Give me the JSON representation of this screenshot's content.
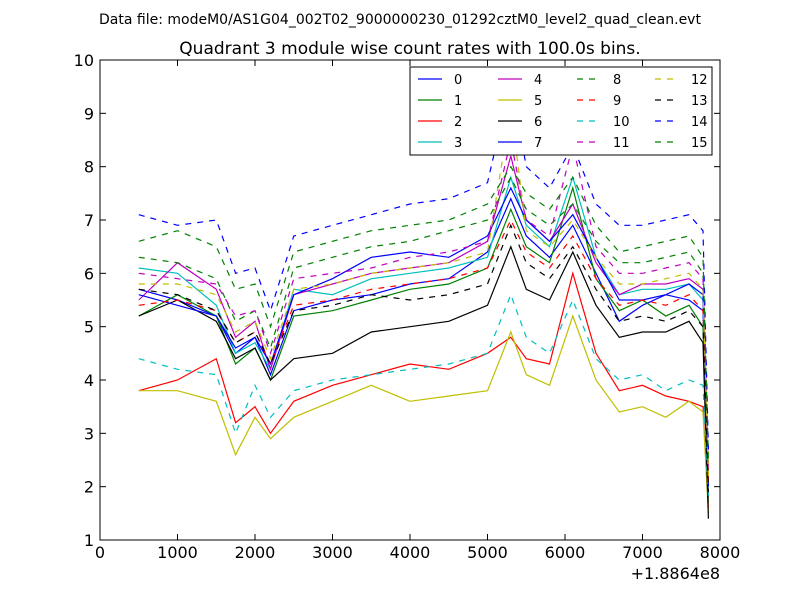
{
  "suptitle": "Data file: modeM0/AS1G04_002T02_9000000230_01292cztM0_level2_quad_clean.evt",
  "chart_data": {
    "type": "line",
    "title": "Quadrant 3 module wise count rates with 100.0s bins.",
    "xlabel": "",
    "ylabel": "",
    "xlim": [
      0,
      8000
    ],
    "ylim": [
      1,
      10
    ],
    "x_offset_label": "+1.8864e8",
    "xticks": [
      0,
      1000,
      2000,
      3000,
      4000,
      5000,
      6000,
      7000,
      8000
    ],
    "yticks": [
      1,
      2,
      3,
      4,
      5,
      6,
      7,
      8,
      9,
      10
    ],
    "legend_position": "top-right",
    "x": [
      500,
      1000,
      1500,
      1750,
      2000,
      2200,
      2500,
      3000,
      3500,
      4000,
      4500,
      5000,
      5300,
      5500,
      5800,
      6100,
      6400,
      6700,
      7000,
      7300,
      7600,
      7780,
      7850
    ],
    "series": [
      {
        "name": "0",
        "color": "#0000ff",
        "dash": "solid",
        "values": [
          5.7,
          5.5,
          5.2,
          4.5,
          4.8,
          4.1,
          5.3,
          5.5,
          5.6,
          5.8,
          5.9,
          6.4,
          7.4,
          6.7,
          6.3,
          6.9,
          6.0,
          5.1,
          5.4,
          5.6,
          5.5,
          5.3,
          1.8
        ]
      },
      {
        "name": "1",
        "color": "#008000",
        "dash": "solid",
        "values": [
          5.2,
          5.6,
          5.2,
          4.3,
          4.6,
          4.0,
          5.2,
          5.3,
          5.5,
          5.7,
          5.8,
          6.1,
          7.2,
          6.5,
          6.2,
          7.6,
          5.9,
          5.3,
          5.5,
          5.2,
          5.4,
          5.0,
          1.7
        ]
      },
      {
        "name": "2",
        "color": "#ff0000",
        "dash": "solid",
        "values": [
          3.8,
          4.0,
          4.4,
          3.2,
          3.5,
          3.0,
          3.6,
          3.9,
          4.1,
          4.3,
          4.2,
          4.5,
          4.8,
          4.4,
          4.3,
          6.0,
          4.5,
          3.8,
          3.9,
          3.7,
          3.6,
          3.5,
          1.6
        ]
      },
      {
        "name": "3",
        "color": "#00bfbf",
        "dash": "solid",
        "values": [
          6.1,
          6.0,
          5.4,
          4.5,
          4.7,
          4.2,
          5.7,
          5.6,
          5.9,
          6.0,
          6.1,
          6.3,
          7.8,
          6.9,
          6.5,
          7.8,
          6.3,
          5.6,
          5.7,
          5.7,
          5.8,
          5.5,
          2.0
        ]
      },
      {
        "name": "4",
        "color": "#bf00bf",
        "dash": "solid",
        "values": [
          5.5,
          6.2,
          5.7,
          4.8,
          5.1,
          4.2,
          5.6,
          5.8,
          6.0,
          6.1,
          6.2,
          6.6,
          8.2,
          7.0,
          6.6,
          7.3,
          6.2,
          5.6,
          5.8,
          5.8,
          5.9,
          5.7,
          2.2
        ]
      },
      {
        "name": "5",
        "color": "#bfbf00",
        "dash": "solid",
        "values": [
          3.8,
          3.8,
          3.6,
          2.6,
          3.3,
          2.9,
          3.3,
          3.6,
          3.9,
          3.6,
          3.7,
          3.8,
          4.9,
          4.1,
          3.9,
          5.2,
          4.0,
          3.4,
          3.5,
          3.3,
          3.6,
          3.4,
          1.5
        ]
      },
      {
        "name": "6",
        "color": "#000000",
        "dash": "solid",
        "values": [
          5.2,
          5.5,
          5.1,
          4.4,
          4.6,
          4.0,
          4.4,
          4.5,
          4.9,
          5.0,
          5.1,
          5.4,
          6.5,
          5.7,
          5.5,
          6.4,
          5.4,
          4.8,
          4.9,
          4.9,
          5.1,
          4.7,
          1.4
        ]
      },
      {
        "name": "7",
        "color": "#0000ff",
        "dash": "solid",
        "values": [
          5.6,
          5.4,
          5.2,
          4.6,
          4.8,
          4.3,
          5.6,
          5.9,
          6.3,
          6.4,
          6.3,
          6.7,
          7.6,
          7.0,
          6.6,
          7.1,
          6.3,
          5.5,
          5.5,
          5.6,
          5.8,
          5.6,
          2.0
        ]
      },
      {
        "name": "8",
        "color": "#008000",
        "dash": "dashed",
        "values": [
          6.3,
          6.2,
          5.9,
          5.1,
          5.3,
          4.6,
          6.1,
          6.3,
          6.5,
          6.6,
          6.8,
          7.0,
          7.8,
          7.2,
          6.9,
          7.3,
          6.6,
          6.2,
          6.2,
          6.3,
          6.4,
          6.0,
          2.4
        ]
      },
      {
        "name": "9",
        "color": "#ff0000",
        "dash": "dashed",
        "values": [
          5.4,
          5.5,
          5.3,
          4.7,
          4.9,
          4.3,
          5.4,
          5.5,
          5.7,
          5.8,
          5.9,
          6.1,
          7.0,
          6.4,
          6.1,
          6.7,
          5.9,
          5.4,
          5.5,
          5.4,
          5.6,
          5.3,
          2.1
        ]
      },
      {
        "name": "10",
        "color": "#00bfbf",
        "dash": "dashed",
        "values": [
          4.4,
          4.2,
          4.1,
          3.0,
          3.9,
          3.3,
          3.8,
          4.0,
          4.1,
          4.2,
          4.3,
          4.5,
          5.6,
          4.8,
          4.5,
          5.5,
          4.4,
          4.0,
          4.1,
          3.8,
          4.0,
          3.9,
          1.8
        ]
      },
      {
        "name": "11",
        "color": "#bf00bf",
        "dash": "dashed",
        "values": [
          6.0,
          5.9,
          5.8,
          5.2,
          5.3,
          4.5,
          5.9,
          6.0,
          6.1,
          6.3,
          6.4,
          6.6,
          8.5,
          7.0,
          6.7,
          8.4,
          6.5,
          6.0,
          6.0,
          6.1,
          6.2,
          5.9,
          2.3
        ]
      },
      {
        "name": "12",
        "color": "#bfbf00",
        "dash": "dashed",
        "values": [
          5.8,
          5.8,
          5.6,
          4.9,
          5.1,
          4.4,
          5.7,
          5.8,
          6.0,
          6.1,
          6.2,
          6.4,
          9.1,
          6.8,
          6.5,
          7.0,
          6.3,
          5.8,
          5.8,
          5.9,
          6.0,
          5.7,
          2.2
        ]
      },
      {
        "name": "13",
        "color": "#000000",
        "dash": "dashed",
        "values": [
          5.7,
          5.6,
          5.3,
          4.7,
          4.9,
          4.3,
          5.3,
          5.4,
          5.6,
          5.5,
          5.6,
          5.8,
          6.9,
          6.2,
          5.9,
          6.5,
          5.7,
          5.1,
          5.2,
          5.1,
          5.3,
          5.0,
          1.9
        ]
      },
      {
        "name": "14",
        "color": "#0000ff",
        "dash": "dashed",
        "values": [
          7.1,
          6.9,
          7.0,
          6.0,
          6.1,
          5.3,
          6.7,
          6.9,
          7.1,
          7.3,
          7.4,
          7.7,
          9.6,
          8.0,
          7.6,
          8.4,
          7.3,
          6.9,
          6.9,
          7.0,
          7.1,
          6.8,
          2.7
        ]
      },
      {
        "name": "15",
        "color": "#008000",
        "dash": "dashed",
        "values": [
          6.6,
          6.8,
          6.5,
          5.7,
          5.8,
          5.0,
          6.4,
          6.6,
          6.8,
          6.9,
          7.0,
          7.3,
          8.0,
          7.5,
          7.2,
          7.8,
          6.9,
          6.4,
          6.5,
          6.6,
          6.7,
          6.3,
          2.5
        ]
      }
    ]
  }
}
